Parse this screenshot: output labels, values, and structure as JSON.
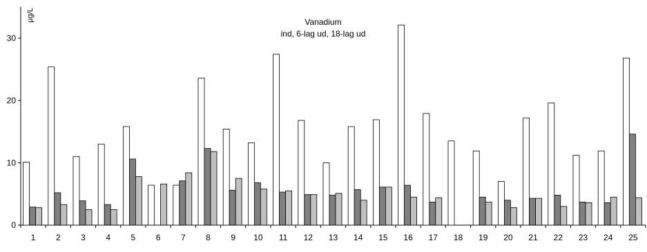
{
  "chart_data": {
    "type": "bar",
    "title": "Vanadium",
    "subtitle": "ind, 6-lag ud, 18-lag ud",
    "ylabel": "µg/L",
    "xlabel": "",
    "ylim": [
      0,
      35
    ],
    "yticks": [
      0,
      10,
      20,
      30
    ],
    "grid": false,
    "legend": "none",
    "categories": [
      "1",
      "2",
      "3",
      "4",
      "5",
      "6",
      "7",
      "8",
      "9",
      "10",
      "11",
      "12",
      "13",
      "14",
      "15",
      "16",
      "17",
      "18",
      "19",
      "20",
      "21",
      "22",
      "23",
      "24",
      "25"
    ],
    "series": [
      {
        "fill": "#ffffff",
        "values": [
          10.1,
          25.4,
          11.0,
          13.0,
          15.8,
          6.4,
          6.4,
          23.6,
          15.4,
          13.2,
          27.4,
          16.8,
          10.0,
          15.8,
          16.9,
          32.1,
          17.9,
          13.5,
          11.9,
          7.0,
          17.2,
          19.6,
          11.2,
          11.9,
          26.8
        ]
      },
      {
        "fill": "#808080",
        "values": [
          2.9,
          5.2,
          3.9,
          3.3,
          10.6,
          null,
          7.1,
          12.3,
          5.6,
          6.8,
          5.3,
          4.9,
          4.8,
          5.7,
          6.1,
          6.4,
          3.7,
          null,
          4.5,
          4.0,
          4.3,
          4.8,
          3.7,
          3.6,
          14.6
        ]
      },
      {
        "fill": "#c0c0c0",
        "values": [
          2.8,
          3.3,
          2.5,
          2.5,
          7.8,
          6.6,
          8.4,
          11.8,
          7.5,
          5.8,
          5.5,
          4.9,
          5.1,
          4.0,
          6.1,
          4.5,
          4.4,
          null,
          3.7,
          2.8,
          4.3,
          3.0,
          3.6,
          4.5,
          4.4
        ]
      }
    ]
  }
}
